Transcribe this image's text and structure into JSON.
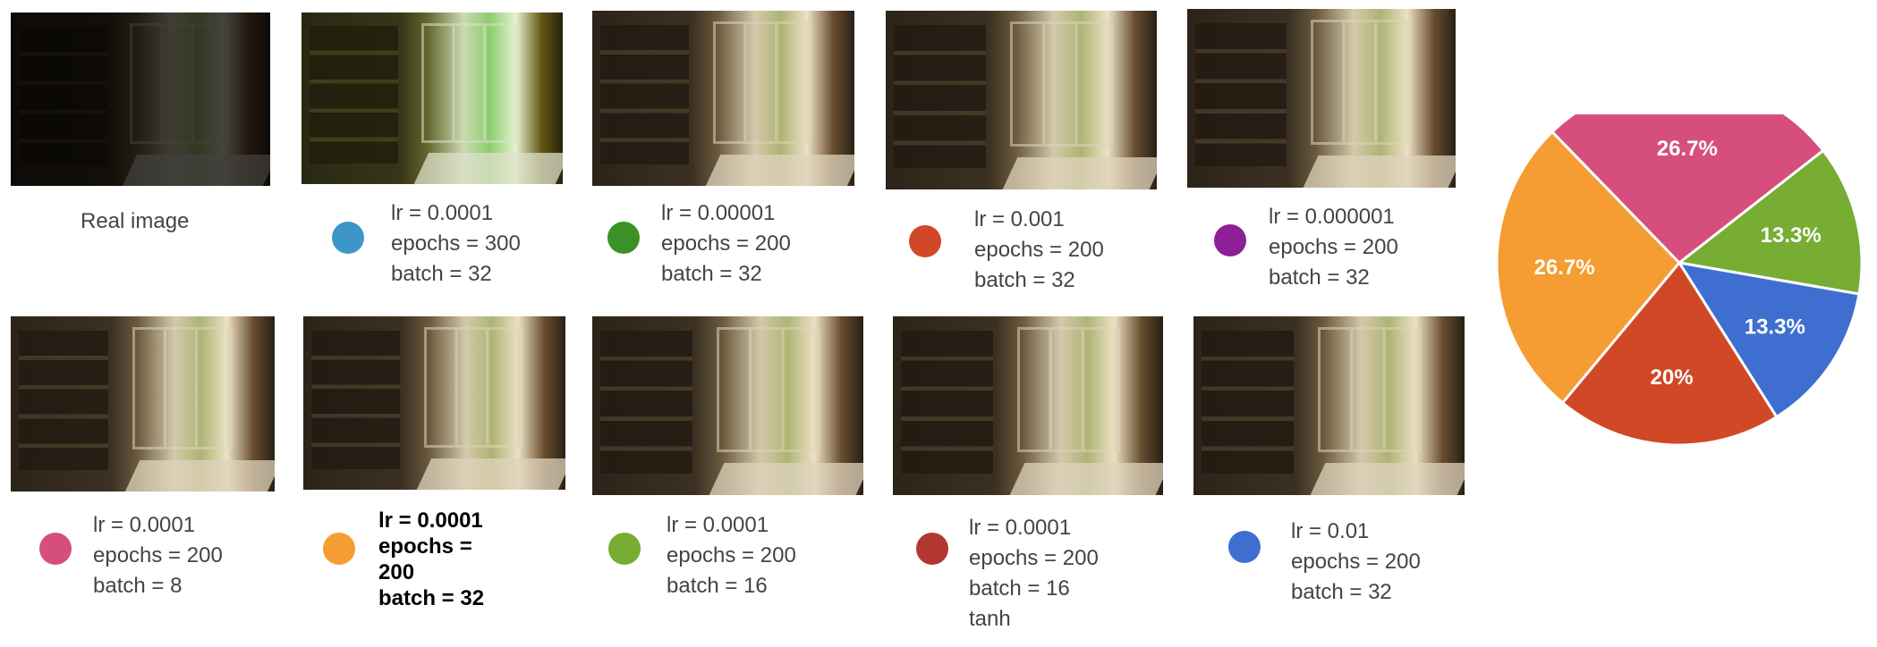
{
  "real_label": "Real image",
  "row1": [
    {
      "color": "#3d96c8",
      "lines": [
        "lr = 0.0001",
        "epochs = 300",
        "batch = 32"
      ]
    },
    {
      "color": "#3a9226",
      "lines": [
        "lr = 0.00001",
        "epochs = 200",
        "batch = 32"
      ]
    },
    {
      "color": "#d14826",
      "lines": [
        "lr = 0.001",
        "epochs = 200",
        "batch = 32"
      ]
    },
    {
      "color": "#8e1f96",
      "lines": [
        "lr = 0.000001",
        "epochs = 200",
        "batch = 32"
      ]
    }
  ],
  "row2": [
    {
      "color": "#d64f7c",
      "lines": [
        "lr = 0.0001",
        "epochs = 200",
        "batch = 8"
      ]
    },
    {
      "color": "#f59d32",
      "bold": true,
      "lines": [
        "lr = 0.0001",
        "epochs =",
        "200",
        "batch = 32"
      ]
    },
    {
      "color": "#76ad32",
      "lines": [
        "lr = 0.0001",
        "epochs = 200",
        "batch = 16"
      ]
    },
    {
      "color": "#b23632",
      "lines": [
        "lr = 0.0001",
        "epochs = 200",
        "batch = 16",
        "tanh"
      ]
    },
    {
      "color": "#3e6fd0",
      "lines": [
        "lr = 0.01",
        "epochs = 200",
        "batch = 32"
      ]
    }
  ],
  "chart_data": {
    "type": "pie",
    "slices": [
      {
        "label": "13.3%",
        "value": 13.3,
        "color": "#76ad32"
      },
      {
        "label": "13.3%",
        "value": 13.3,
        "color": "#3e6fd0"
      },
      {
        "label": "20%",
        "value": 20,
        "color": "#d14826"
      },
      {
        "label": "26.7%",
        "value": 26.7,
        "color": "#f59d32"
      },
      {
        "label": "26.7%",
        "value": 26.7,
        "color": "#d64f7c"
      }
    ]
  }
}
